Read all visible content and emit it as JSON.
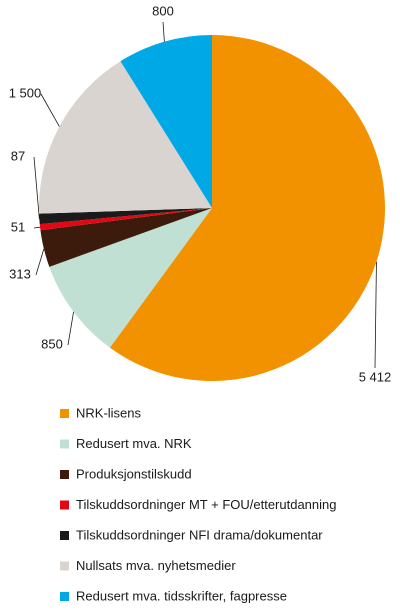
{
  "chart_data": {
    "type": "pie",
    "categories": [
      "NRK-lisens",
      "Redusert mva. NRK",
      "Produksjonstilskudd",
      "Tilskuddsordninger MT + FOU/etterutdanning",
      "Tilskuddsordninger NFI drama/dokumentar",
      "Nullsats mva. nyhetsmedier",
      "Redusert mva. tidsskrifter, fagpresse"
    ],
    "values": [
      5412,
      850,
      313,
      51,
      87,
      1500,
      800
    ],
    "value_labels": [
      "5 412",
      "850",
      "313",
      "51",
      "87",
      "1 500",
      "800"
    ],
    "colors": [
      "#f39200",
      "#bfe0d2",
      "#3d1b0c",
      "#e30613",
      "#1a1a1a",
      "#d9d4d0",
      "#00a9e6"
    ]
  }
}
